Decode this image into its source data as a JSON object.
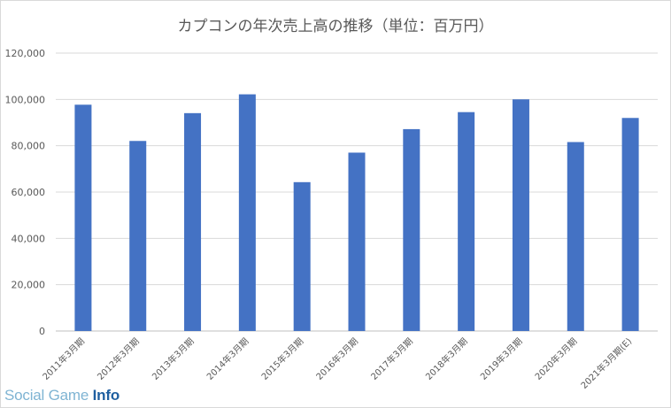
{
  "chart_data": {
    "type": "bar",
    "title": "カプコンの年次売上高の推移（単位：百万円）",
    "xlabel": "",
    "ylabel": "",
    "categories": [
      "2011年3月期",
      "2012年3月期",
      "2013年3月期",
      "2014年3月期",
      "2015年3月期",
      "2016年3月期",
      "2017年3月期",
      "2018年3月期",
      "2019年3月期",
      "2020年3月期",
      "2021年3月期(E)"
    ],
    "series": [
      {
        "values": [
          97716,
          82065,
          94075,
          102200,
          64277,
          77021,
          87170,
          94515,
          100031,
          81591,
          92000
        ]
      }
    ],
    "ylim": [
      0,
      120000
    ],
    "yticks": [
      "0",
      "20,000",
      "40,000",
      "60,000",
      "80,000",
      "100,000",
      "120,000"
    ],
    "grid": true,
    "bar_color": "#4472c4"
  },
  "watermark": {
    "part1": "Social Game ",
    "part2": "Info"
  }
}
